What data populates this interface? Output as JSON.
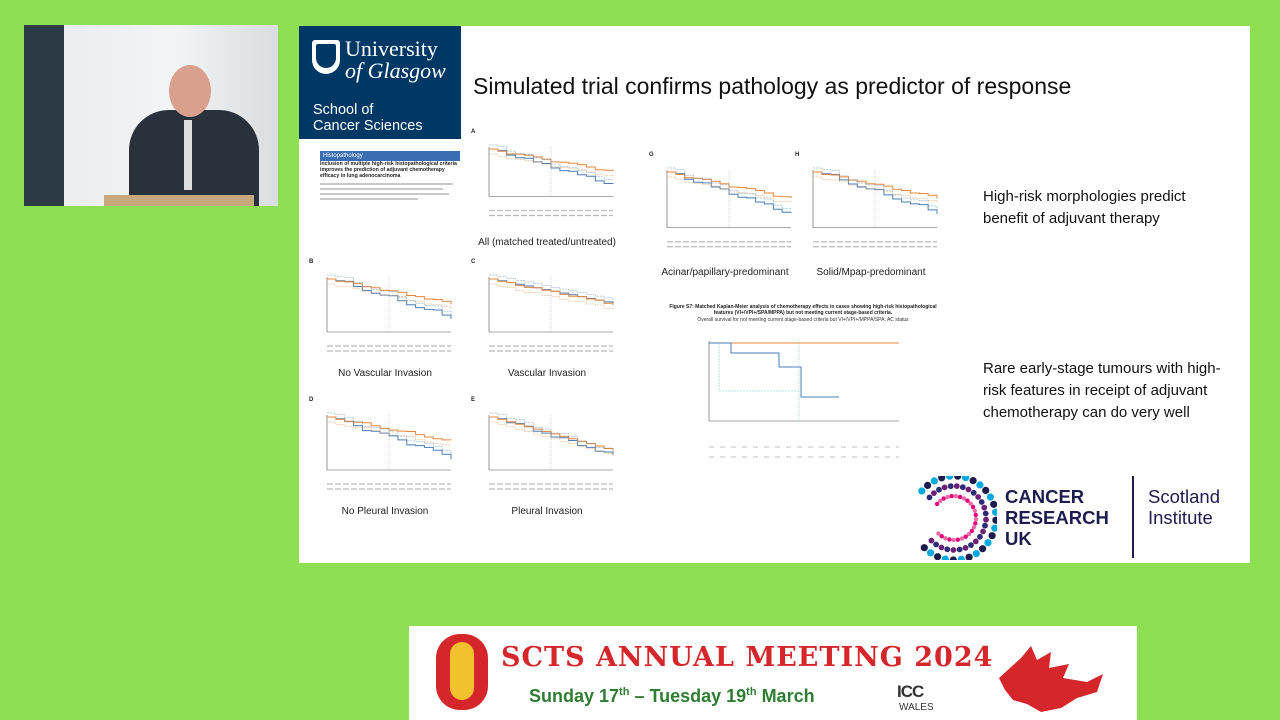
{
  "slide": {
    "title": "Simulated trial confirms pathology as predictor of response",
    "university": {
      "name_line1": "University",
      "name_line2": "of Glasgow",
      "school_line1": "School of",
      "school_line2": "Cancer Sciences"
    },
    "paper": {
      "journal": "Histopathology",
      "title": "Inclusion of multiple high-risk histopathological criteria improves the prediction of adjuvant chemotherapy efficacy in lung adenocarcinoma"
    },
    "panels": {
      "A": {
        "letter": "A",
        "caption": "All (matched treated/untreated)"
      },
      "B": {
        "letter": "B",
        "caption": "No Vascular Invasion"
      },
      "C": {
        "letter": "C",
        "caption": "Vascular Invasion"
      },
      "D": {
        "letter": "D",
        "caption": "No Pleural Invasion"
      },
      "E": {
        "letter": "E",
        "caption": "Pleural Invasion"
      },
      "G": {
        "letter": "G",
        "caption": "Acinar/papillary-predominant"
      },
      "H": {
        "letter": "H",
        "caption": "Solid/Mpap-predominant"
      }
    },
    "figure_s7": {
      "caption": "Figure S7: Matched Kaplan-Meier analysis of chemotherapy effects in cases showing high-risk histopathological features (VI+/VPI+/SPA/MPPA) but not meeting current stage-based criteria.",
      "subtitle": "Overall survival for not meeting current stage-based criteria but VI+/VPI+/MPPA/SPA: AC status"
    },
    "bullets": [
      "High-risk morphologies predict benefit of adjuvant therapy",
      "Rare early-stage tumours with high-risk features in receipt of adjuvant chemotherapy can do very well"
    ],
    "logo": {
      "cruk_line1": "CANCER",
      "cruk_line2": "RESEARCH",
      "cruk_line3": "UK",
      "institute_line1": "Scotland",
      "institute_line2": "Institute"
    }
  },
  "banner": {
    "meeting_title": "SCTS ANNUAL MEETING 2024",
    "date_start_day": "Sunday 17",
    "date_start_suffix": "th",
    "date_mid": " – Tuesday 19",
    "date_end_suffix": "th",
    "date_end_month": " March",
    "venue_logo": "ICC",
    "venue_sub": "WALES"
  },
  "colors": {
    "background": "#8fdf52",
    "uog_blue": "#003865",
    "km_orange": "#e8873a",
    "km_blue": "#4a7fb5",
    "cruk_navy": "#1c1c4e",
    "scts_red": "#d4262b"
  }
}
